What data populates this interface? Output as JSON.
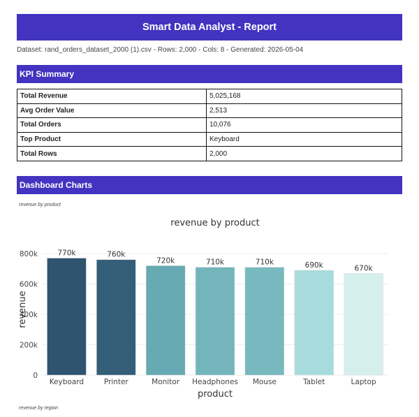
{
  "report": {
    "title": "Smart Data Analyst - Report",
    "meta": "Dataset: rand_orders_dataset_2000 (1).csv  -  Rows: 2,000  -  Cols: 8  -  Generated: 2026-05-04"
  },
  "kpi": {
    "heading": "KPI Summary",
    "rows": [
      {
        "key": "Total Revenue",
        "value": "5,025,168"
      },
      {
        "key": "Avg Order Value",
        "value": "2,513"
      },
      {
        "key": "Total Orders",
        "value": "10,076"
      },
      {
        "key": "Top Product",
        "value": "Keyboard"
      },
      {
        "key": "Total Rows",
        "value": "2,000"
      }
    ]
  },
  "dashboard": {
    "heading": "Dashboard Charts",
    "captions": [
      "revenue by product",
      "revenue by region"
    ]
  },
  "chart_data": {
    "type": "bar",
    "title": "revenue by product",
    "xlabel": "product",
    "ylabel": "revenue",
    "categories": [
      "Keyboard",
      "Printer",
      "Monitor",
      "Headphones",
      "Mouse",
      "Tablet",
      "Laptop"
    ],
    "values": [
      770000,
      760000,
      720000,
      710000,
      710000,
      690000,
      670000
    ],
    "data_labels": [
      "770k",
      "760k",
      "720k",
      "710k",
      "710k",
      "690k",
      "670k"
    ],
    "yticks": [
      0,
      200000,
      400000,
      600000,
      800000
    ],
    "ytick_labels": [
      "0",
      "200k",
      "400k",
      "600k",
      "800k"
    ],
    "ylim": [
      0,
      800000
    ],
    "colors": [
      "#2f5470",
      "#355e79",
      "#67aab3",
      "#74b5bc",
      "#78b9bf",
      "#a8dcdc",
      "#d5efec"
    ],
    "grid": true,
    "legend": "none"
  }
}
